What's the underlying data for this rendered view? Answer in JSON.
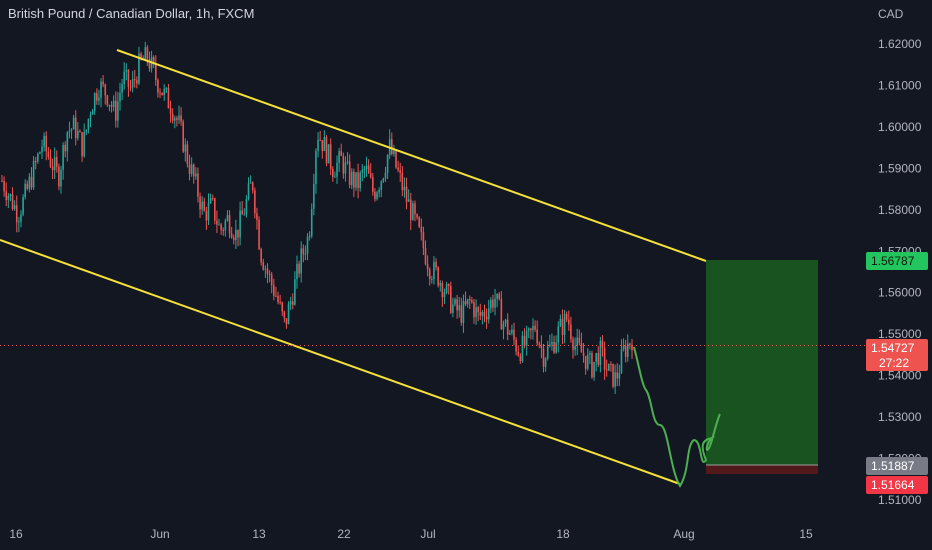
{
  "header": {
    "title": "British Pound / Canadian Dollar, 1h, FXCM",
    "unit": "CAD"
  },
  "colors": {
    "bg": "#131722",
    "up": "#26a69a",
    "down": "#ef5350",
    "channel": "#f5e13a",
    "projection": "#4caf50",
    "target_zone": "#1b5e20",
    "stop_zone": "#5a1a1a",
    "axis_text": "#b2b5be",
    "price_line": "#ef5350"
  },
  "chart_data": {
    "type": "candlestick",
    "symbol": "GBPCAD",
    "timeframe": "1h",
    "source": "FXCM",
    "ylim": [
      1.505,
      1.625
    ],
    "y_ticks": [
      "1.51000",
      "1.52000",
      "1.53000",
      "1.54000",
      "1.55000",
      "1.56000",
      "1.57000",
      "1.58000",
      "1.59000",
      "1.60000",
      "1.61000",
      "1.62000"
    ],
    "x_ticks": [
      "16",
      "Jun",
      "13",
      "22",
      "Jul",
      "18",
      "Aug",
      "15"
    ],
    "price_path": [
      [
        1.587
      ],
      [
        1.583
      ],
      [
        1.579
      ],
      [
        1.584
      ],
      [
        1.59
      ],
      [
        1.596
      ],
      [
        1.592
      ],
      [
        1.588
      ],
      [
        1.599
      ],
      [
        1.6
      ],
      [
        1.595
      ],
      [
        1.605
      ],
      [
        1.61
      ],
      [
        1.608
      ],
      [
        1.603
      ],
      [
        1.612
      ],
      [
        1.609
      ],
      [
        1.615
      ],
      [
        1.617
      ],
      [
        1.612
      ],
      [
        1.608
      ],
      [
        1.605
      ],
      [
        1.6
      ],
      [
        1.592
      ],
      [
        1.586
      ],
      [
        1.579
      ],
      [
        1.581
      ],
      [
        1.575
      ],
      [
        1.578
      ],
      [
        1.574
      ],
      [
        1.58
      ],
      [
        1.587
      ],
      [
        1.57
      ],
      [
        1.564
      ],
      [
        1.559
      ],
      [
        1.552
      ],
      [
        1.56
      ],
      [
        1.568
      ],
      [
        1.574
      ],
      [
        1.599
      ],
      [
        1.595
      ],
      [
        1.59
      ],
      [
        1.592
      ],
      [
        1.588
      ],
      [
        1.586
      ],
      [
        1.59
      ],
      [
        1.584
      ],
      [
        1.588
      ],
      [
        1.595
      ],
      [
        1.589
      ],
      [
        1.583
      ],
      [
        1.578
      ],
      [
        1.572
      ],
      [
        1.566
      ],
      [
        1.564
      ],
      [
        1.56
      ],
      [
        1.556
      ],
      [
        1.555
      ],
      [
        1.558
      ],
      [
        1.554
      ],
      [
        1.556
      ],
      [
        1.559
      ],
      [
        1.553
      ],
      [
        1.55
      ],
      [
        1.546
      ],
      [
        1.548
      ],
      [
        1.552
      ],
      [
        1.545
      ],
      [
        1.547
      ],
      [
        1.551
      ],
      [
        1.554
      ],
      [
        1.547
      ],
      [
        1.545
      ],
      [
        1.542
      ],
      [
        1.546
      ],
      [
        1.541
      ],
      [
        1.539
      ],
      [
        1.546
      ],
      [
        1.549
      ]
    ],
    "current_price": "1.54727",
    "countdown": "27:22",
    "target_price": "1.56787",
    "entry_price": "1.51887",
    "stop_price": "1.51664",
    "channel_upper": [
      [
        "May 27",
        1.618
      ],
      [
        "Aug 3",
        1.568
      ]
    ],
    "channel_lower": [
      [
        "May 9",
        1.576
      ],
      [
        "Aug 1",
        1.516
      ]
    ],
    "projection": [
      1.547,
      1.54,
      1.53,
      1.52,
      1.515,
      1.524,
      1.518,
      1.523,
      1.52,
      1.53
    ]
  }
}
